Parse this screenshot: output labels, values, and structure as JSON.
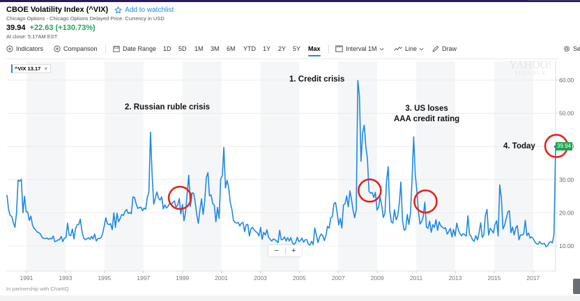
{
  "header": {
    "title": "CBOE Volatility Index (^VIX)",
    "watchlist_label": "Add to watchlist",
    "subtitle": "Chicago Options - Chicago Options Delayed Price. Currency in USD",
    "price": "39.94",
    "change": "+22.63 (+130.73%)",
    "close_time": "At close: 5:17AM EST"
  },
  "toolbar": {
    "indicators": "Indicators",
    "comparison": "Comparison",
    "date_range": "Date Range",
    "ranges": [
      "1D",
      "5D",
      "1M",
      "3M",
      "6M",
      "YTD",
      "1Y",
      "2Y",
      "5Y",
      "Max"
    ],
    "active_range": "Max",
    "interval": "Interval",
    "interval_value": "1M",
    "chart_type": "Line",
    "draw": "Draw",
    "settings": "Se"
  },
  "legend": {
    "symbol": "^VIX 13.17",
    "close": "×"
  },
  "zoom_controls": {
    "minus": "−",
    "plus": "+"
  },
  "watermark": {
    "line1": "YAHOO!",
    "line2": "FINANCE"
  },
  "footer": {
    "partner": "In partnership with ChartIQ"
  },
  "colors": {
    "line": "#1e88e5",
    "up": "#1fa652",
    "annotation_circle": "#e8231a"
  },
  "annotations": [
    {
      "label": "1. Credit crisis",
      "year": 2008.85,
      "value": 59.9
    },
    {
      "label": "2. Russian ruble crisis",
      "year": 1998.7,
      "value": 44.3
    },
    {
      "label": "3. US loses AAA credit rating",
      "line1": "3. US loses",
      "line2": "AAA credit rating",
      "year": 2011.7,
      "value": 42.9
    },
    {
      "label": "4. Today",
      "year": 2018.08,
      "value": 39.94
    }
  ],
  "chart_data": {
    "type": "line",
    "title": "CBOE Volatility Index (^VIX)",
    "xlabel": "",
    "ylabel": "",
    "interval": "1M",
    "x_ticks": [
      "1991",
      "1993",
      "1995",
      "1997",
      "1999",
      "2001",
      "2003",
      "2005",
      "2007",
      "2009",
      "2011",
      "2013",
      "2015",
      "2017"
    ],
    "y_ticks": [
      "10.00",
      "20.00",
      "30.00",
      "40.00",
      "50.00",
      "60.00"
    ],
    "ylim": [
      0,
      65
    ],
    "xlim": [
      1990.0,
      2018.5
    ],
    "last_value": "39.94",
    "series": [
      {
        "name": "^VIX",
        "start_year": 1990.0,
        "step_years": 0.0833,
        "values": [
          25.4,
          21.0,
          19.2,
          18.9,
          17.0,
          15.6,
          20.0,
          29.9,
          29.5,
          30.1,
          20.0,
          25.0,
          20.3,
          20.3,
          17.7,
          19.0,
          16.3,
          15.3,
          14.8,
          14.2,
          14.0,
          13.6,
          12.6,
          12.3,
          12.2,
          12.4,
          12.0,
          12.3,
          12.1,
          13.0,
          11.3,
          11.5,
          11.8,
          11.9,
          12.9,
          11.3,
          12.4,
          12.5,
          16.9,
          13.3,
          13.1,
          15.1,
          12.1,
          15.2,
          16.4,
          16.5,
          18.1,
          14.5,
          12.5,
          11.9,
          12.1,
          12.5,
          12.0,
          12.9,
          12.1,
          13.6,
          11.5,
          12.2,
          12.3,
          12.5,
          13.8,
          16.1,
          18.5,
          16.7,
          16.4,
          16.7,
          14.9,
          20.0,
          15.6,
          19.9,
          17.3,
          18.3,
          19.5,
          19.2,
          20.4,
          21.0,
          19.8,
          20.1,
          19.7,
          24.8,
          24.6,
          22.7,
          21.3,
          21.6,
          21.7,
          20.6,
          21.4,
          21.1,
          24.6,
          26.3,
          44.3,
          31.5,
          22.6,
          24.4,
          26.3,
          24.4,
          23.8,
          24.8,
          21.2,
          22.4,
          21.4,
          22.0,
          22.9,
          22.5,
          23.1,
          23.6,
          21.7,
          22.3,
          24.3,
          19.6,
          22.5,
          17.6,
          20.1,
          25.8,
          31.3,
          21.9,
          26.0,
          25.9,
          23.3,
          19.5,
          16.8,
          20.9,
          24.2,
          19.5,
          23.6,
          30.7,
          32.1,
          25.1,
          25.4,
          22.8,
          22.3,
          17.3,
          21.6,
          18.3,
          30.1,
          31.2,
          39.7,
          27.5,
          29.8,
          27.7,
          23.1,
          21.1,
          17.7,
          17.1,
          16.9,
          17.1,
          16.0,
          16.9,
          17.1,
          14.3,
          16.4,
          16.5,
          13.0,
          15.2,
          15.6,
          14.9,
          14.3,
          14.0,
          13.0,
          15.6,
          12.0,
          14.1,
          13.3,
          14.9,
          12.6,
          12.0,
          11.5,
          12.1,
          11.9,
          11.5,
          11.0,
          14.7,
          11.9,
          12.0,
          12.7,
          11.5,
          12.5,
          11.5,
          12.5,
          10.9,
          10.5,
          11.0,
          12.6,
          11.3,
          11.6,
          12.4,
          11.1,
          11.9,
          11.9,
          10.5,
          10.3,
          11.4,
          10.4,
          15.4,
          13.4,
          11.0,
          12.7,
          13.6,
          13.1,
          11.6,
          13.2,
          15.9,
          15.4,
          18.5,
          18.8,
          22.7,
          23.1,
          20.1,
          16.3,
          18.3,
          15.4,
          22.4,
          22.7,
          25.1,
          21.8,
          26.6,
          24.0,
          20.8,
          18.5,
          20.8,
          59.9,
          55.3,
          35.5,
          44.1,
          46.4,
          40.0,
          36.5,
          26.5,
          25.9,
          26.1,
          24.6,
          26.2,
          20.8,
          21.7,
          24.8,
          22.1,
          18.6,
          19.8,
          29.5,
          33.9,
          20.6,
          17.2,
          16.9,
          20.9,
          17.9,
          19.0,
          22.9,
          29.3,
          17.7,
          14.8,
          15.0,
          19.5,
          16.5,
          19.8,
          30.0,
          42.9,
          31.6,
          26.4,
          20.2,
          16.6,
          17.4,
          18.8,
          23.2,
          15.7,
          15.3,
          17.5,
          14.1,
          16.4,
          15.6,
          17.9,
          14.7,
          17.3,
          16.0,
          15.7,
          15.2,
          15.5,
          13.6,
          14.3,
          15.3,
          12.7,
          15.0,
          13.0,
          16.9,
          14.9,
          13.7,
          13.1,
          13.7,
          13.4,
          13.0,
          19.1,
          13.5,
          12.9,
          11.8,
          11.4,
          13.1,
          11.8,
          13.9,
          17.0,
          12.6,
          13.3,
          19.2,
          21.0,
          13.3,
          15.3,
          14.7,
          13.9,
          16.5,
          17.6,
          13.0,
          28.4,
          24.5,
          15.1,
          16.2,
          18.2,
          20.2,
          20.6,
          14.0,
          15.7,
          13.3,
          15.4,
          16.1,
          11.9,
          13.3,
          13.3,
          13.6,
          17.7,
          13.1,
          13.9,
          12.4,
          12.7,
          12.2,
          11.2,
          10.7,
          10.5,
          11.3,
          10.7,
          10.6,
          10.8,
          9.8,
          10.1,
          11.0,
          11.3,
          10.9,
          13.5,
          39.94
        ]
      }
    ]
  }
}
